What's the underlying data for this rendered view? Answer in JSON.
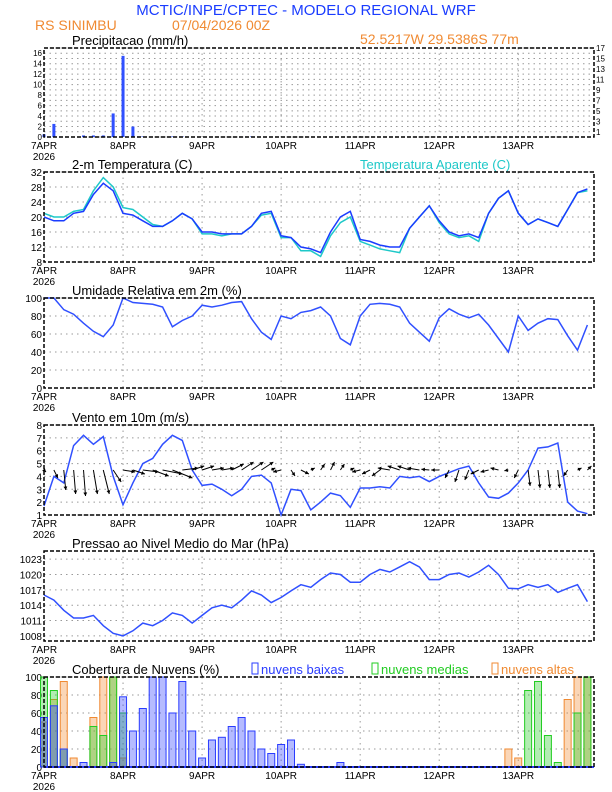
{
  "header": {
    "title": "MCTIC/INPE/CPTEC - MODELO REGIONAL WRF",
    "station": "RS SINIMBU",
    "run": "07/04/2026 00Z",
    "location": "52.5217W 29.5386S 77m"
  },
  "colors": {
    "title": "#1a3cff",
    "info": "#f08a32",
    "temp": "#1a3cff",
    "apparent": "#1ec8c8",
    "line": "#3050ff",
    "low": "#2a3cff",
    "mid": "#22cc22",
    "high": "#f08a32"
  },
  "x_axis": {
    "start": "07/04/2026 00Z",
    "step_hours": 3,
    "tick_labels": [
      "7APR",
      "8APR",
      "9APR",
      "10APR",
      "11APR",
      "12APR",
      "13APR"
    ],
    "year_label": "2026"
  },
  "chart_data": [
    {
      "type": "bar",
      "title": "Precipitacao (mm/h)",
      "ylim": [
        0,
        17
      ],
      "yticks": [
        0,
        1,
        2,
        3,
        4,
        5,
        6,
        7,
        8,
        9,
        10,
        11,
        12,
        13,
        14,
        15,
        16,
        17
      ],
      "grid": true,
      "values": [
        0.5,
        2.5,
        0,
        0,
        0.3,
        0.3,
        0.3,
        4.5,
        15.5,
        2,
        0.1,
        0,
        0,
        0.1,
        0.1,
        0,
        0,
        0,
        0,
        0,
        0,
        0.1,
        0,
        0,
        0,
        0,
        0,
        0,
        0,
        0,
        0,
        0,
        0,
        0,
        0,
        0,
        0,
        0,
        0,
        0,
        0,
        0,
        0,
        0,
        0,
        0,
        0,
        0,
        0,
        0,
        0,
        0,
        0,
        0,
        0,
        0
      ]
    },
    {
      "type": "line",
      "title": "2-m Temperatura (C)",
      "ylim": [
        8,
        32
      ],
      "yticks": [
        8,
        12,
        16,
        20,
        24,
        28,
        32
      ],
      "grid": true,
      "series": [
        {
          "name": "2-m Temperatura (C)",
          "values": [
            20,
            19,
            19,
            21,
            21.5,
            26,
            29,
            27,
            21,
            20.5,
            19,
            17.5,
            17.5,
            19,
            21,
            19.5,
            16,
            16,
            15.5,
            15.5,
            15.5,
            17.5,
            21,
            21.5,
            15,
            14.5,
            12,
            11.5,
            10.5,
            16,
            20,
            21.5,
            14,
            13.5,
            12.5,
            12,
            12,
            17,
            20,
            23,
            19,
            16,
            15,
            15.5,
            14.5,
            21,
            25,
            27,
            21,
            18,
            19.5,
            18.5,
            17.5,
            22,
            26.5,
            27.5
          ]
        },
        {
          "name": "Temperatura Aparente (C)",
          "values": [
            21,
            20,
            20,
            21.5,
            22,
            27,
            30.5,
            28,
            22.5,
            22,
            20,
            18,
            17.5,
            19,
            21,
            19.5,
            15.5,
            15.5,
            15,
            15.5,
            15.5,
            17.5,
            20.5,
            21,
            14.5,
            14.5,
            11,
            11,
            9.5,
            15,
            18.5,
            20,
            13.5,
            12.5,
            11.5,
            11,
            10.5,
            17,
            20,
            23,
            18.5,
            15.5,
            14.5,
            15,
            13.5,
            21,
            25,
            27,
            21,
            18,
            19.5,
            18.5,
            17.5,
            22,
            26.5,
            27
          ]
        }
      ]
    },
    {
      "type": "line",
      "title": "Umidade Relativa em 2m (%)",
      "ylim": [
        0,
        100
      ],
      "yticks": [
        0,
        20,
        40,
        60,
        80,
        100
      ],
      "grid": true,
      "values": [
        100,
        100,
        87,
        82,
        72,
        63,
        57,
        70,
        100,
        95,
        94,
        93,
        90,
        68,
        75,
        80,
        92,
        90,
        92,
        95,
        96,
        77,
        62,
        54,
        80,
        77,
        84,
        86,
        90,
        80,
        55,
        48,
        80,
        93,
        94,
        93,
        90,
        72,
        62,
        52,
        78,
        88,
        82,
        78,
        82,
        70,
        55,
        40,
        80,
        64,
        72,
        77,
        76,
        58,
        42,
        70
      ]
    },
    {
      "type": "line",
      "title": "Vento em 10m (m/s)",
      "ylim": [
        1,
        8
      ],
      "yticks": [
        1,
        2,
        3,
        4,
        5,
        6,
        7,
        8
      ],
      "grid": true,
      "speed": [
        1.7,
        4,
        3.5,
        6.4,
        7.2,
        6.5,
        7.1,
        4,
        1.8,
        3.5,
        5,
        5.4,
        6.5,
        7.2,
        6.8,
        4.5,
        3.3,
        3.4,
        3,
        2.5,
        3,
        4,
        4.1,
        3.5,
        1,
        3,
        2.9,
        1.4,
        2,
        2.7,
        2.5,
        1.6,
        3.1,
        3.1,
        3.2,
        3.1,
        4,
        3.9,
        4,
        3.6,
        4,
        4.3,
        4.6,
        4.8,
        3.5,
        2.4,
        2.3,
        2.7,
        3.5,
        4.5,
        6.2,
        6.3,
        6.6,
        2,
        1.3,
        1.1
      ],
      "u": [
        0.5,
        1,
        0.5,
        0.5,
        0.5,
        1,
        1.5,
        2,
        3,
        3,
        4,
        4,
        5,
        5,
        4,
        3,
        3,
        3,
        3,
        3,
        3,
        3,
        3,
        1,
        -2,
        1,
        2,
        1,
        1,
        1,
        1,
        1,
        -2,
        -2,
        -2,
        -3,
        -3,
        -3,
        -3,
        -2,
        -2,
        -1,
        -1,
        -1,
        -2,
        -2,
        -2,
        -1,
        -1,
        0.5,
        0.5,
        0.5,
        0.5,
        -1,
        1,
        1
      ],
      "v": [
        -0.5,
        -2,
        -5,
        -6,
        -6.5,
        -6,
        -6,
        -3,
        -0.5,
        -1,
        -0.5,
        -1.5,
        -1,
        -2,
        0.5,
        1,
        1,
        0.5,
        0.5,
        1.5,
        2,
        2,
        2,
        0.5,
        -0.5,
        -1.5,
        -1,
        0.5,
        1.5,
        2,
        1.5,
        0.5,
        -0.5,
        -1,
        -1.5,
        0.5,
        1,
        1,
        0.5,
        0.2,
        0,
        -2,
        -3,
        -2.5,
        -1,
        -0.5,
        0.5,
        -0.2,
        -2,
        -4,
        -4.5,
        -4.5,
        -4.5,
        -1.5,
        0.5,
        1
      ]
    },
    {
      "type": "line",
      "title": "Pressao ao Nivel Medio do Mar (hPa)",
      "ylim": [
        1007,
        1024.6
      ],
      "yticks": [
        1008,
        1011,
        1014,
        1017,
        1020,
        1023
      ],
      "grid": true,
      "values": [
        1016,
        1015,
        1013,
        1011.5,
        1011.5,
        1012,
        1010,
        1008.5,
        1008,
        1009,
        1010.5,
        1010,
        1011,
        1012.5,
        1012,
        1010.5,
        1012,
        1013.5,
        1014,
        1013.5,
        1015,
        1016.8,
        1016,
        1014.5,
        1015.5,
        1016.8,
        1018,
        1017.5,
        1019,
        1020.3,
        1020,
        1018.5,
        1018.5,
        1020,
        1021,
        1020.5,
        1021.5,
        1022.5,
        1021.5,
        1019,
        1019,
        1020,
        1020.3,
        1019.5,
        1020.5,
        1021.8,
        1020,
        1017.3,
        1017.2,
        1018,
        1017.5,
        1018,
        1016.5,
        1017.3,
        1018,
        1014.7
      ]
    },
    {
      "type": "bar",
      "title": "Cobertura de Nuvens (%)",
      "ylim": [
        0,
        100
      ],
      "yticks": [
        0,
        20,
        40,
        60,
        80,
        100
      ],
      "grid": true,
      "legend": "top",
      "series": [
        {
          "name": "nuvens baixas",
          "values": [
            55,
            68,
            20,
            0,
            5,
            0,
            0,
            5,
            78,
            40,
            65,
            100,
            100,
            60,
            95,
            40,
            10,
            30,
            33,
            45,
            55,
            40,
            20,
            15,
            25,
            30,
            3,
            0,
            0,
            0,
            5,
            0,
            0,
            0,
            0,
            0,
            0,
            0,
            0,
            0,
            0,
            0,
            0,
            0,
            0,
            0,
            0,
            0,
            0,
            0,
            0,
            0,
            0,
            0,
            0,
            0
          ]
        },
        {
          "name": "nuvens medias",
          "values": [
            100,
            85,
            20,
            0,
            0,
            45,
            35,
            100,
            60,
            0,
            0,
            0,
            0,
            0,
            0,
            0,
            0,
            0,
            0,
            0,
            0,
            0,
            0,
            0,
            0,
            0,
            0,
            0,
            0,
            0,
            0,
            0,
            0,
            0,
            0,
            0,
            0,
            0,
            0,
            0,
            0,
            0,
            0,
            0,
            0,
            0,
            0,
            0,
            0,
            85,
            95,
            35,
            5,
            0,
            60,
            100
          ]
        },
        {
          "name": "nuvens altas",
          "values": [
            50,
            75,
            95,
            10,
            0,
            55,
            100,
            100,
            10,
            0,
            0,
            0,
            0,
            0,
            0,
            0,
            0,
            0,
            0,
            0,
            0,
            0,
            0,
            0,
            0,
            0,
            0,
            0,
            0,
            0,
            0,
            0,
            0,
            0,
            0,
            0,
            0,
            0,
            0,
            0,
            0,
            0,
            0,
            0,
            0,
            0,
            0,
            20,
            10,
            0,
            0,
            0,
            0,
            75,
            100,
            100
          ]
        }
      ]
    }
  ]
}
